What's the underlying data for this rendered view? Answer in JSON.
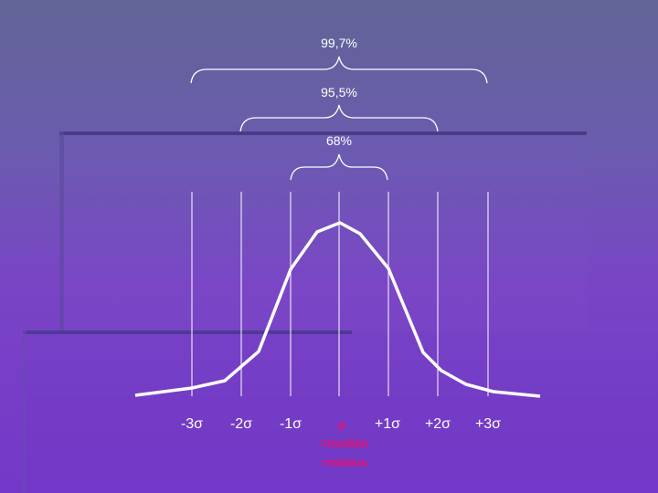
{
  "annotations": {
    "range_3": "99,7%",
    "range_2": "95,5%",
    "range_1": "68%"
  },
  "axis_labels": {
    "minus3": "-3σ",
    "minus2": "-2σ",
    "minus1": "-1σ",
    "mu": "μ",
    "plus1": "+1σ",
    "plus2": "+2σ",
    "plus3": "+3σ"
  },
  "mu_notes": [
    "=medián",
    "=módus"
  ],
  "colors": {
    "curve": "#ffffff",
    "mu_text": "#e8106e"
  }
}
